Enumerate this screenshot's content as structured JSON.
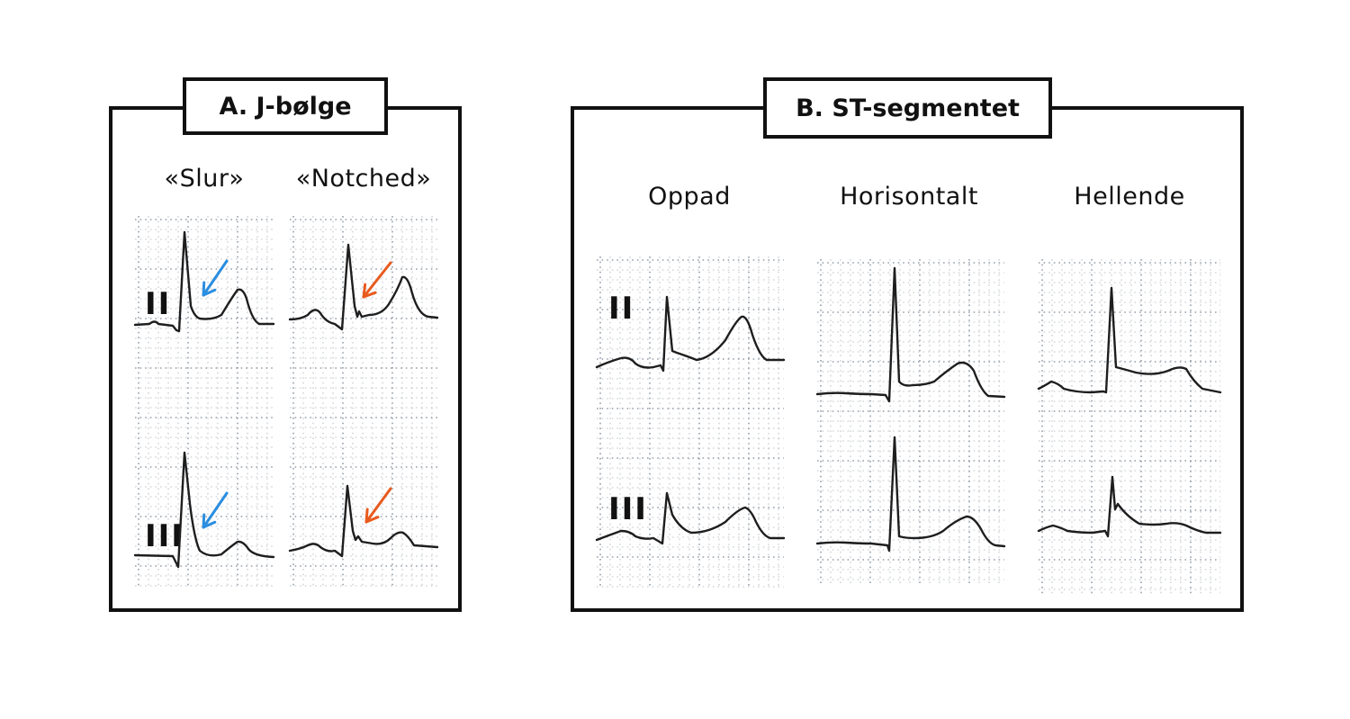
{
  "panel_a": {
    "title": "A. J-bølge",
    "columns": [
      "«Slur»",
      "«Notched»"
    ],
    "leads": [
      "II",
      "III"
    ]
  },
  "panel_b": {
    "title": "B. ST-segmentet",
    "columns": [
      "Oppad",
      "Horisontalt",
      "Hellende"
    ],
    "leads": [
      "II",
      "III"
    ]
  },
  "colors": {
    "trace": "#1e1e1e",
    "grid_dot": "#8a94a0",
    "arrow_slur": "#2a8ee0",
    "arrow_notched": "#e85a1e",
    "border": "#111111"
  }
}
